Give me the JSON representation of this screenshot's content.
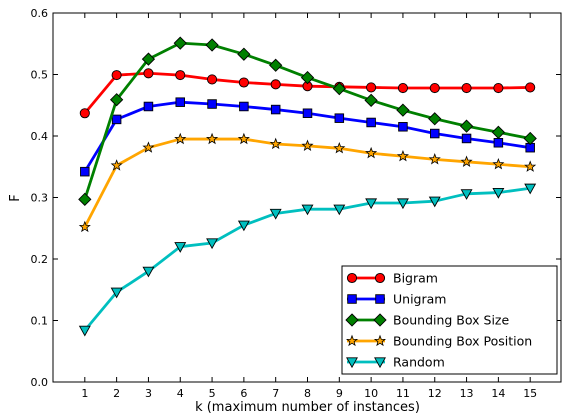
{
  "chart_data": {
    "type": "line",
    "xlabel": "k (maximum number of instances)",
    "ylabel": "F",
    "x": [
      1,
      2,
      3,
      4,
      5,
      6,
      7,
      8,
      9,
      10,
      11,
      12,
      13,
      14,
      15
    ],
    "xlim": [
      0,
      16
    ],
    "ylim": [
      0.0,
      0.6
    ],
    "xticks": [
      "1",
      "2",
      "3",
      "4",
      "5",
      "6",
      "7",
      "8",
      "9",
      "10",
      "11",
      "12",
      "13",
      "14",
      "15"
    ],
    "yticks": [
      "0.0",
      "0.1",
      "0.2",
      "0.3",
      "0.4",
      "0.5",
      "0.6"
    ],
    "grid": false,
    "legend_position": "bottom-right",
    "series": [
      {
        "name": "Bigram",
        "color": "#ff0000",
        "marker": "circle",
        "values": [
          0.437,
          0.499,
          0.502,
          0.499,
          0.492,
          0.487,
          0.484,
          0.481,
          0.48,
          0.479,
          0.478,
          0.478,
          0.478,
          0.478,
          0.479
        ]
      },
      {
        "name": "Unigram",
        "color": "#0000ff",
        "marker": "square",
        "values": [
          0.342,
          0.427,
          0.448,
          0.455,
          0.452,
          0.448,
          0.443,
          0.437,
          0.429,
          0.422,
          0.415,
          0.404,
          0.396,
          0.389,
          0.381
        ]
      },
      {
        "name": "Bounding Box Size",
        "color": "#008000",
        "marker": "diamond",
        "values": [
          0.297,
          0.459,
          0.525,
          0.551,
          0.548,
          0.533,
          0.515,
          0.495,
          0.477,
          0.458,
          0.442,
          0.428,
          0.416,
          0.406,
          0.396
        ]
      },
      {
        "name": "Bounding Box Position",
        "color": "#ffa500",
        "marker": "star",
        "values": [
          0.252,
          0.352,
          0.381,
          0.395,
          0.395,
          0.395,
          0.387,
          0.384,
          0.38,
          0.372,
          0.367,
          0.362,
          0.358,
          0.354,
          0.35
        ]
      },
      {
        "name": "Random",
        "color": "#00bfbf",
        "marker": "triangle-down",
        "values": [
          0.084,
          0.146,
          0.18,
          0.22,
          0.226,
          0.255,
          0.274,
          0.281,
          0.281,
          0.291,
          0.291,
          0.294,
          0.306,
          0.308,
          0.315
        ]
      }
    ]
  }
}
